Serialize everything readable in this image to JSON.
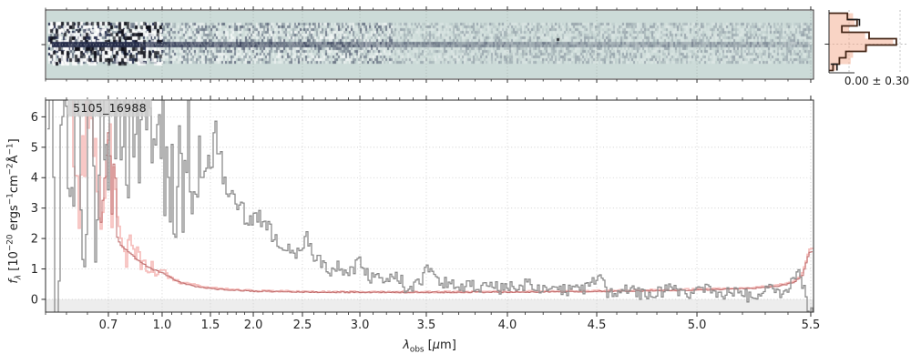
{
  "figure": {
    "id_label": "5105_16988",
    "noise_stats": "0.00 ± 0.30"
  },
  "axes": {
    "xlabel_html": "<i>λ</i><sub>obs</sub> [<i>μ</i>m]",
    "ylabel_html": "<i>f</i><sub><i>λ</i></sub> [10<sup>−20</sup> ergs<sup>−1</sup>cm<sup>−2</sup>Å<sup>−1</sup>]",
    "x_ticks": [
      "0.7",
      "1.0",
      "1.5",
      "2.0",
      "2.5",
      "3.0",
      "3.5",
      "4.0",
      "4.5",
      "5.0",
      "5.5"
    ],
    "y_ticks": [
      "0",
      "1",
      "2",
      "3",
      "4",
      "5",
      "6"
    ]
  },
  "colors": {
    "flux_gray": "#8c8c8c",
    "error_pink": "#f6bebc",
    "error_dark_red": "#bf6b6b",
    "grid": "#c8c8c8",
    "frame": "#2b2b2b",
    "zero_band": "#ededed",
    "twod_background": "#ccdbd8",
    "twod_trace": "#2c3150",
    "hist_outline": "#452718",
    "hist_black": "#1b1b1b",
    "hist_fill": "rgba(244,170,140,0.5)",
    "twod_grid": "#a3aeaa"
  },
  "chart_data": [
    {
      "type": "heatmap",
      "role": "2d-spectrum-cutout",
      "x_shared_with": "1d-spectrum",
      "appearance": "light teal background; noisy slit band; dark horizontal trace at slit center, strongest blueward of ~2 um; saturated black/white noise blobs at blue end",
      "noise_seed": 77031
    },
    {
      "type": "line",
      "role": "1d-spectrum",
      "annotation": "5105_16988",
      "xlabel": "lambda_obs [um]",
      "ylabel": "f_lambda [1e-20 ergs^-1 cm^-2 A^-1]",
      "xlim": [
        0.55,
        5.52
      ],
      "ylim": [
        -0.42,
        6.55
      ],
      "x_tick_values": [
        0.7,
        1.0,
        1.5,
        2.0,
        2.5,
        3.0,
        3.5,
        4.0,
        4.5,
        5.0,
        5.5
      ],
      "y_tick_values": [
        0,
        1,
        2,
        3,
        4,
        5,
        6
      ],
      "grid": true,
      "x_scale_note": "non-linear detector-pixel wavelength scale",
      "scale_anchors": [
        [
          0.55,
          0
        ],
        [
          0.7,
          0.0818
        ],
        [
          1.0,
          0.1518
        ],
        [
          1.5,
          0.2147
        ],
        [
          2.0,
          0.2705
        ],
        [
          2.5,
          0.3345
        ],
        [
          3.0,
          0.4093
        ],
        [
          3.5,
          0.4958
        ],
        [
          4.0,
          0.6014
        ],
        [
          4.5,
          0.7177
        ],
        [
          5.0,
          0.8482
        ],
        [
          5.5,
          0.9964
        ],
        [
          5.52,
          1.0
        ]
      ],
      "zero_band_below": 0,
      "noise_seed": 20240917,
      "series": [
        {
          "name": "flux",
          "style": "steps",
          "anchors": [
            [
              0.56,
              7.5
            ],
            [
              0.575,
              -1.2
            ],
            [
              0.59,
              8.2
            ],
            [
              0.61,
              2.4
            ],
            [
              0.625,
              8.5
            ],
            [
              0.64,
              -0.8
            ],
            [
              0.655,
              7.8
            ],
            [
              0.668,
              1.5
            ],
            [
              0.68,
              7.2
            ],
            [
              0.695,
              3.1
            ],
            [
              0.705,
              6.4
            ],
            [
              0.72,
              7.8
            ],
            [
              0.735,
              4.6
            ],
            [
              0.75,
              6.2
            ],
            [
              0.765,
              5.4
            ],
            [
              0.78,
              6.7
            ],
            [
              0.795,
              3.0
            ],
            [
              0.81,
              5.9
            ],
            [
              0.825,
              6.8
            ],
            [
              0.84,
              4.3
            ],
            [
              0.855,
              6.3
            ],
            [
              0.87,
              5.1
            ],
            [
              0.885,
              6.6
            ],
            [
              0.9,
              5.3
            ],
            [
              0.92,
              6.7
            ],
            [
              0.94,
              5.6
            ],
            [
              0.96,
              4.7
            ],
            [
              0.98,
              6.3
            ],
            [
              1.0,
              6.0
            ],
            [
              1.02,
              4.4
            ],
            [
              1.04,
              5.3
            ],
            [
              1.06,
              3.9
            ],
            [
              1.08,
              4.5
            ],
            [
              1.1,
              3.0
            ],
            [
              1.12,
              4.2
            ],
            [
              1.15,
              3.4
            ],
            [
              1.18,
              4.7
            ],
            [
              1.21,
              4.0
            ],
            [
              1.25,
              5.8
            ],
            [
              1.28,
              4.2
            ],
            [
              1.32,
              4.5
            ],
            [
              1.36,
              4.1
            ],
            [
              1.4,
              4.9
            ],
            [
              1.44,
              4.0
            ],
            [
              1.48,
              4.3
            ],
            [
              1.52,
              4.6
            ],
            [
              1.55,
              5.9
            ],
            [
              1.58,
              4.1
            ],
            [
              1.62,
              4.5
            ],
            [
              1.66,
              4.1
            ],
            [
              1.7,
              3.7
            ],
            [
              1.74,
              3.3
            ],
            [
              1.78,
              3.5
            ],
            [
              1.82,
              3.1
            ],
            [
              1.86,
              2.9
            ],
            [
              1.9,
              2.8
            ],
            [
              1.95,
              2.5
            ],
            [
              2.0,
              2.6
            ],
            [
              2.05,
              3.0
            ],
            [
              2.1,
              2.35
            ],
            [
              2.15,
              2.25
            ],
            [
              2.2,
              2.2
            ],
            [
              2.25,
              1.95
            ],
            [
              2.3,
              1.85
            ],
            [
              2.35,
              1.6
            ],
            [
              2.4,
              1.7
            ],
            [
              2.45,
              1.5
            ],
            [
              2.5,
              1.55
            ],
            [
              2.53,
              2.1
            ],
            [
              2.58,
              1.35
            ],
            [
              2.63,
              1.3
            ],
            [
              2.68,
              1.15
            ],
            [
              2.73,
              1.05
            ],
            [
              2.78,
              1.0
            ],
            [
              2.83,
              1.15
            ],
            [
              2.88,
              0.9
            ],
            [
              2.93,
              0.95
            ],
            [
              3.0,
              1.25
            ],
            [
              3.05,
              0.8
            ],
            [
              3.1,
              0.75
            ],
            [
              3.2,
              0.7
            ],
            [
              3.3,
              0.65
            ],
            [
              3.35,
              0.25
            ],
            [
              3.45,
              0.6
            ],
            [
              3.5,
              1.1
            ],
            [
              3.6,
              0.55
            ],
            [
              3.7,
              0.5
            ],
            [
              3.8,
              0.45
            ],
            [
              3.9,
              0.4
            ],
            [
              4.0,
              0.35
            ],
            [
              4.1,
              0.5
            ],
            [
              4.2,
              0.3
            ],
            [
              4.3,
              0.35
            ],
            [
              4.4,
              0.25
            ],
            [
              4.5,
              0.75
            ],
            [
              4.56,
              0.15
            ],
            [
              4.65,
              0.3
            ],
            [
              4.75,
              0.1
            ],
            [
              4.85,
              0.35
            ],
            [
              4.95,
              0.2
            ],
            [
              5.05,
              0.35
            ],
            [
              5.1,
              0.05
            ],
            [
              5.18,
              0.4
            ],
            [
              5.24,
              -0.05
            ],
            [
              5.3,
              0.45
            ],
            [
              5.36,
              0.1
            ],
            [
              5.41,
              0.5
            ],
            [
              5.44,
              0.9
            ],
            [
              5.465,
              0.35
            ],
            [
              5.49,
              -0.4
            ]
          ],
          "noise_amp": [
            [
              0.56,
              2.2
            ],
            [
              1.25,
              1.9
            ],
            [
              1.45,
              0.6
            ],
            [
              1.8,
              0.45
            ],
            [
              2.3,
              0.3
            ],
            [
              3.0,
              0.25
            ],
            [
              4.0,
              0.22
            ],
            [
              5.5,
              0.2
            ]
          ]
        },
        {
          "name": "error",
          "style": "steps",
          "anchors": [
            [
              0.56,
              8.0
            ],
            [
              0.6,
              7.5
            ],
            [
              0.63,
              3.2
            ],
            [
              0.655,
              6.8
            ],
            [
              0.68,
              2.6
            ],
            [
              0.7,
              6.2
            ],
            [
              0.715,
              2.9
            ],
            [
              0.73,
              5.5
            ],
            [
              0.745,
              2.2
            ],
            [
              0.76,
              1.95
            ],
            [
              0.78,
              1.8
            ],
            [
              0.82,
              1.6
            ],
            [
              0.86,
              1.35
            ],
            [
              0.9,
              1.2
            ],
            [
              0.94,
              1.05
            ],
            [
              0.98,
              0.97
            ],
            [
              1.02,
              0.88
            ],
            [
              1.07,
              0.78
            ],
            [
              1.12,
              0.68
            ],
            [
              1.17,
              0.61
            ],
            [
              1.22,
              0.55
            ],
            [
              1.3,
              0.48
            ],
            [
              1.4,
              0.42
            ],
            [
              1.5,
              0.38
            ],
            [
              1.6,
              0.35
            ],
            [
              1.7,
              0.33
            ],
            [
              1.8,
              0.31
            ],
            [
              2.0,
              0.285
            ],
            [
              2.2,
              0.27
            ],
            [
              2.5,
              0.26
            ],
            [
              2.8,
              0.25
            ],
            [
              3.2,
              0.245
            ],
            [
              3.6,
              0.245
            ],
            [
              4.0,
              0.255
            ],
            [
              4.3,
              0.265
            ],
            [
              4.6,
              0.285
            ],
            [
              4.9,
              0.315
            ],
            [
              5.1,
              0.345
            ],
            [
              5.25,
              0.39
            ],
            [
              5.35,
              0.46
            ],
            [
              5.42,
              0.58
            ],
            [
              5.46,
              0.85
            ],
            [
              5.49,
              1.65
            ]
          ],
          "noise_amp": [
            [
              0.56,
              1.4
            ],
            [
              0.75,
              0.9
            ],
            [
              0.9,
              0.3
            ],
            [
              1.1,
              0.1
            ],
            [
              1.4,
              0.03
            ],
            [
              5.5,
              0.03
            ]
          ]
        },
        {
          "name": "error_model",
          "style": "steps",
          "derived_from": "error",
          "scale_factor": 0.94,
          "start_wavelength": 0.68
        }
      ]
    },
    {
      "type": "histogram",
      "role": "pixel-noise-distribution",
      "orientation": "horizontal",
      "stats_label": "0.00 ± 0.30",
      "fill_tips": [
        0.3,
        0.32,
        0.25,
        0.45,
        0.8,
        0.48,
        0.3,
        0.27,
        0.09
      ],
      "line_tips": [
        0.23,
        0.35,
        0.16,
        0.5,
        0.84,
        0.46,
        0.21,
        0.13,
        0.05
      ],
      "black_marks": [
        [
          0.23,
          0.38,
          1
        ],
        [
          0.02,
          0.1,
          8
        ]
      ],
      "dashed_guides": "horizontal line at distribution center, two vertical dashed reference lines"
    }
  ]
}
